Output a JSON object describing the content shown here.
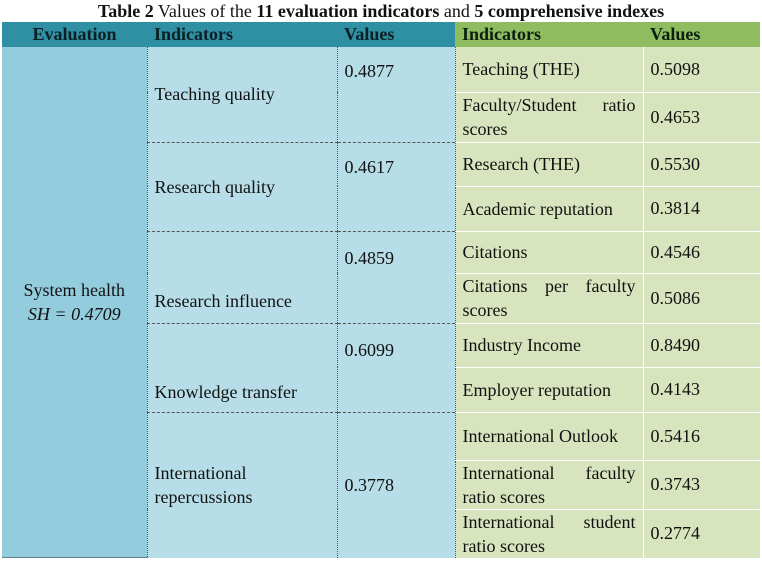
{
  "caption": {
    "label": "Table 2",
    "part1": " Values of the ",
    "bold1": "11 evaluation indicators",
    "part2": " and ",
    "bold2": "5 comprehensive indexes"
  },
  "headers": {
    "evaluation": "Evaluation",
    "indicators": "Indicators",
    "values": "Values",
    "sub_indicators": "Indicators",
    "sub_values": "Values"
  },
  "evaluation": {
    "line1": "System health",
    "line2": "SH = 0.4709"
  },
  "groups": [
    {
      "indicator": "Teaching quality",
      "value": "0.4877",
      "subs": [
        {
          "name": "Teaching (THE)",
          "value": "0.5098"
        },
        {
          "name": "Faculty/Student ratio scores",
          "value": "0.4653"
        }
      ]
    },
    {
      "indicator": "Research quality",
      "value": "0.4617",
      "subs": [
        {
          "name": "Research (THE)",
          "value": "0.5530"
        },
        {
          "name": "Academic reputation",
          "value": "0.3814"
        }
      ]
    },
    {
      "indicator": "Research influence",
      "value": "0.4859",
      "subs": [
        {
          "name": "Citations",
          "value": "0.4546"
        },
        {
          "name": "Citations per faculty scores",
          "value": "0.5086"
        }
      ]
    },
    {
      "indicator": "Knowledge transfer",
      "value": "0.6099",
      "subs": [
        {
          "name": "Industry Income",
          "value": "0.8490"
        },
        {
          "name": "Employer reputation",
          "value": "0.4143"
        }
      ]
    },
    {
      "indicator": "International repercussions",
      "value": "0.3778",
      "subs": [
        {
          "name": "International Outlook",
          "value": "0.5416"
        },
        {
          "name": "International faculty ratio scores",
          "value": "0.3743"
        },
        {
          "name": "International student ratio scores",
          "value": "0.2774"
        }
      ]
    }
  ]
}
